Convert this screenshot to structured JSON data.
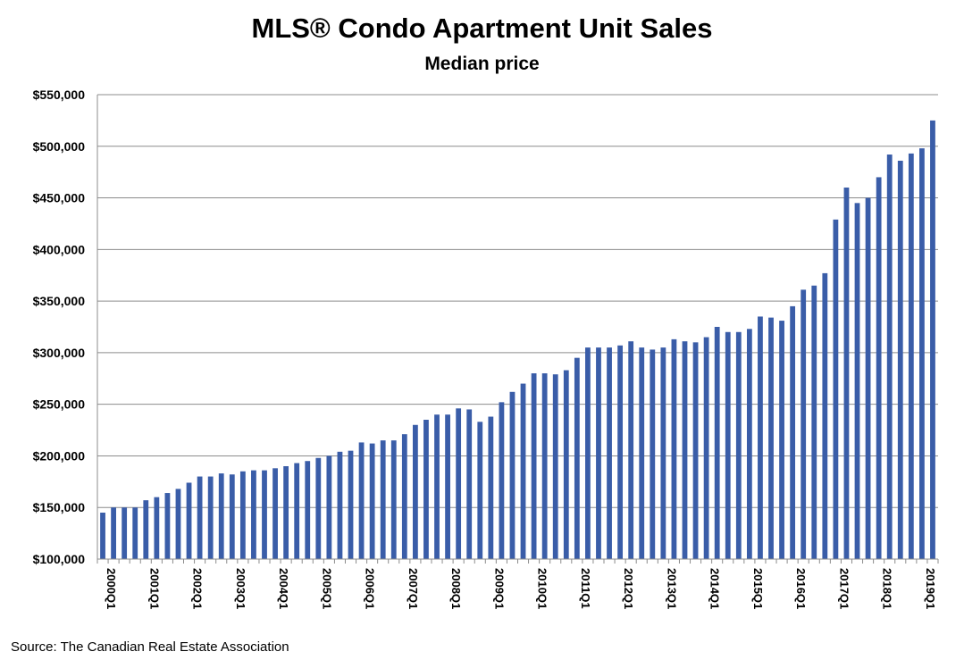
{
  "chart_data": {
    "type": "bar",
    "title": "MLS® Condo Apartment Unit Sales",
    "subtitle": "Median price",
    "xlabel": "",
    "ylabel": "",
    "ylim": [
      100000,
      550000
    ],
    "yticks": [
      100000,
      150000,
      200000,
      250000,
      300000,
      350000,
      400000,
      450000,
      500000,
      550000
    ],
    "ytick_labels": [
      "$100,000",
      "$150,000",
      "$200,000",
      "$250,000",
      "$300,000",
      "$350,000",
      "$400,000",
      "$450,000",
      "$500,000",
      "$550,000"
    ],
    "xtick_labels": [
      "2000Q1",
      "2001Q1",
      "2002Q1",
      "2003Q1",
      "2004Q1",
      "2005Q1",
      "2006Q1",
      "2007Q1",
      "2008Q1",
      "2009Q1",
      "2010Q1",
      "2011Q1",
      "2012Q1",
      "2013Q1",
      "2014Q1",
      "2015Q1",
      "2016Q1",
      "2017Q1",
      "2018Q1",
      "2019Q1"
    ],
    "grid": true,
    "bar_color": "#3a5da8",
    "values": [
      145000,
      150000,
      150000,
      150000,
      157000,
      160000,
      164000,
      168000,
      174000,
      180000,
      180000,
      183000,
      182000,
      185000,
      186000,
      186000,
      188000,
      190000,
      193000,
      195000,
      198000,
      200000,
      204000,
      205000,
      213000,
      212000,
      215000,
      215000,
      221000,
      230000,
      235000,
      240000,
      240000,
      246000,
      245000,
      233000,
      238000,
      252000,
      262000,
      270000,
      280000,
      280000,
      279000,
      283000,
      295000,
      305000,
      305000,
      305000,
      307000,
      311000,
      305000,
      303000,
      305000,
      313000,
      311000,
      310000,
      315000,
      325000,
      320000,
      320000,
      323000,
      335000,
      334000,
      331000,
      345000,
      361000,
      365000,
      377000,
      429000,
      460000,
      445000,
      450000,
      470000,
      492000,
      486000,
      493000,
      498000,
      525000
    ]
  },
  "source": "Source: The Canadian Real Estate Association"
}
